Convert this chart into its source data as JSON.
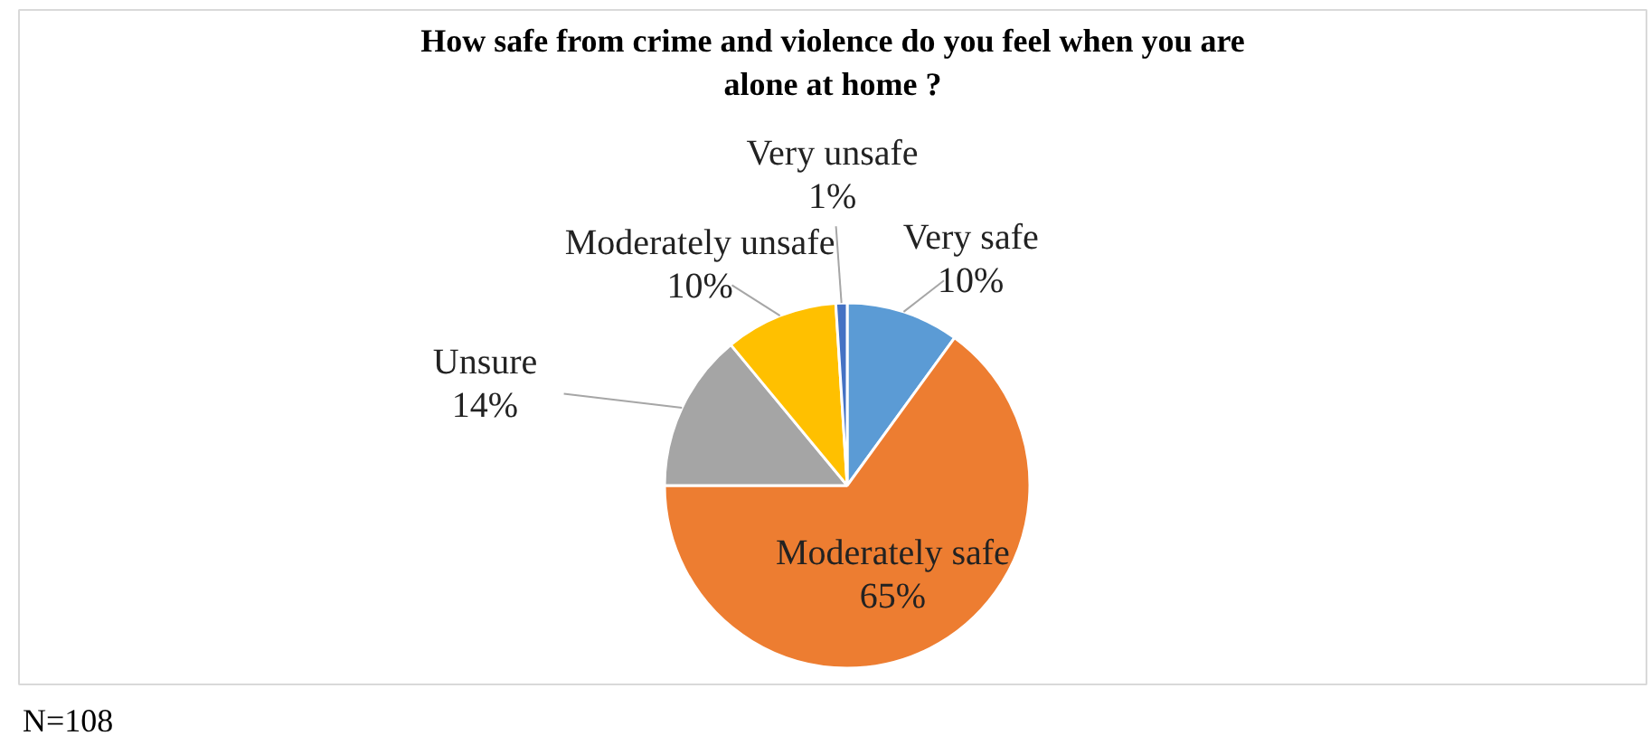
{
  "chart_data": {
    "type": "pie",
    "title": "How safe from crime and violence do you feel when you are alone at home ?",
    "categories": [
      "Very safe",
      "Moderately safe",
      "Unsure",
      "Moderately unsafe",
      "Very unsafe"
    ],
    "values": [
      10,
      65,
      14,
      10,
      1
    ],
    "colors": [
      "#5b9bd5",
      "#ed7d31",
      "#a5a5a5",
      "#ffc000",
      "#4472c4"
    ],
    "value_labels": [
      "10%",
      "65%",
      "14%",
      "10%",
      "1%"
    ],
    "annotations": [
      "N=108"
    ]
  }
}
